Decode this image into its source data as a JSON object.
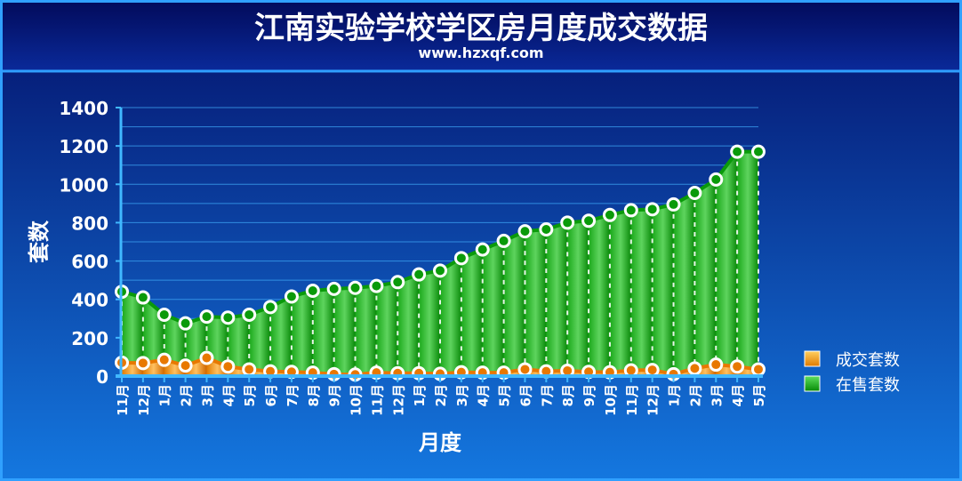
{
  "header": {
    "title": "江南实验学校学区房月度成交数据",
    "subtitle": "www.hzxqf.com"
  },
  "colors": {
    "background_top": "#04106a",
    "background_bottom": "#1478e0",
    "series_sold": "#f08a10",
    "series_sold_light": "#ffc040",
    "series_on_sale": "#1ec41e",
    "series_on_sale_dark": "#078a07"
  },
  "chart_data": {
    "type": "area",
    "title": "江南实验学校学区房月度成交数据",
    "subtitle": "www.hzxqf.com",
    "xlabel": "月度",
    "ylabel": "套数",
    "ylim": [
      0,
      1400
    ],
    "yticks": [
      "0",
      "200",
      "400",
      "600",
      "800",
      "1000",
      "1200",
      "1400"
    ],
    "grid": true,
    "legend_position": "right",
    "categories": [
      "11月",
      "12月",
      "1月",
      "2月",
      "3月",
      "4月",
      "5月",
      "6月",
      "7月",
      "8月",
      "9月",
      "10月",
      "11月",
      "12月",
      "1月",
      "2月",
      "3月",
      "4月",
      "5月",
      "6月",
      "7月",
      "8月",
      "9月",
      "10月",
      "11月",
      "12月",
      "1月",
      "2月",
      "3月",
      "4月",
      "5月"
    ],
    "series": [
      {
        "name": "成交套数",
        "values": [
          70,
          68,
          85,
          55,
          95,
          50,
          35,
          25,
          22,
          18,
          10,
          8,
          18,
          15,
          15,
          12,
          20,
          18,
          18,
          35,
          25,
          28,
          22,
          20,
          30,
          32,
          10,
          40,
          60,
          50,
          35
        ]
      },
      {
        "name": "在售套数",
        "values": [
          440,
          410,
          320,
          275,
          310,
          305,
          320,
          360,
          415,
          445,
          455,
          460,
          470,
          490,
          530,
          550,
          615,
          660,
          705,
          755,
          765,
          800,
          810,
          840,
          865,
          870,
          895,
          955,
          1025,
          1170,
          1170
        ]
      }
    ]
  }
}
